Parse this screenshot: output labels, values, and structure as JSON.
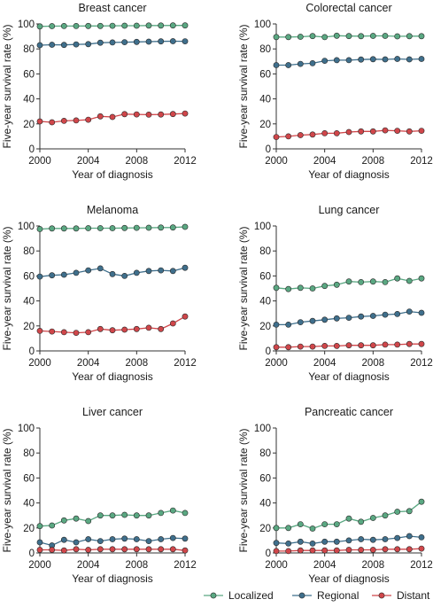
{
  "colors": {
    "Localized": "#5aa882",
    "Regional": "#3f6f8c",
    "Distant": "#d0464a",
    "axis": "#333333"
  },
  "chart_data": [
    {
      "type": "line",
      "title": "Breast cancer",
      "xlabel": "Year of diagnosis",
      "ylabel": "Five-year survival rate (%)",
      "xlim": [
        2000,
        2012
      ],
      "ylim": [
        0,
        100
      ],
      "xticks": [
        2000,
        2004,
        2008,
        2012
      ],
      "yticks": [
        0,
        20,
        40,
        60,
        80,
        100
      ],
      "x": [
        2000,
        2001,
        2002,
        2003,
        2004,
        2005,
        2006,
        2007,
        2008,
        2009,
        2010,
        2011,
        2012
      ],
      "series": [
        {
          "name": "Localized",
          "values": [
            98,
            98.2,
            98.3,
            98.3,
            98.4,
            98.4,
            98.5,
            98.6,
            98.6,
            98.7,
            98.7,
            98.8,
            98.8
          ]
        },
        {
          "name": "Regional",
          "values": [
            83,
            83.3,
            83.2,
            83.6,
            83.8,
            85,
            85.2,
            85.4,
            85.6,
            85.8,
            86,
            86.2,
            86.1
          ]
        },
        {
          "name": "Distant",
          "values": [
            22,
            21.3,
            22.4,
            22.8,
            23.3,
            26,
            25.5,
            27.8,
            27.6,
            27.4,
            27.5,
            27.9,
            28.3
          ]
        }
      ]
    },
    {
      "type": "line",
      "title": "Colorectal cancer",
      "xlabel": "Year of diagnosis",
      "ylabel": "Five-year survival rate (%)",
      "xlim": [
        2000,
        2012
      ],
      "ylim": [
        0,
        100
      ],
      "xticks": [
        2000,
        2004,
        2008,
        2012
      ],
      "yticks": [
        0,
        20,
        40,
        60,
        80,
        100
      ],
      "x": [
        2000,
        2001,
        2002,
        2003,
        2004,
        2005,
        2006,
        2007,
        2008,
        2009,
        2010,
        2011,
        2012
      ],
      "series": [
        {
          "name": "Localized",
          "values": [
            89.5,
            89.5,
            89.7,
            90.3,
            89.4,
            90.6,
            90.3,
            90.2,
            90.4,
            90.4,
            90.1,
            90.2,
            90.2
          ]
        },
        {
          "name": "Regional",
          "values": [
            67,
            67,
            68,
            68.5,
            70.5,
            71,
            71,
            71.5,
            71.8,
            71.6,
            72,
            71.6,
            72
          ]
        },
        {
          "name": "Distant",
          "values": [
            9.5,
            10,
            11,
            11.5,
            12.5,
            12.5,
            13.5,
            14,
            14,
            14.8,
            14.5,
            14,
            14.5
          ]
        }
      ]
    },
    {
      "type": "line",
      "title": "Melanoma",
      "xlabel": "Year of diagnosis",
      "ylabel": "Five-year survival rate (%)",
      "xlim": [
        2000,
        2012
      ],
      "ylim": [
        0,
        100
      ],
      "xticks": [
        2000,
        2004,
        2008,
        2012
      ],
      "yticks": [
        0,
        20,
        40,
        60,
        80,
        100
      ],
      "x": [
        2000,
        2001,
        2002,
        2003,
        2004,
        2005,
        2006,
        2007,
        2008,
        2009,
        2010,
        2011,
        2012
      ],
      "series": [
        {
          "name": "Localized",
          "values": [
            97.5,
            98,
            98,
            98,
            98.2,
            98.2,
            98.2,
            98.4,
            98.5,
            98.6,
            98.7,
            98.8,
            99.3
          ]
        },
        {
          "name": "Regional",
          "values": [
            59.5,
            60.5,
            61,
            62.5,
            64.5,
            66,
            61.5,
            60,
            62.5,
            64,
            64.5,
            64,
            66.5
          ]
        },
        {
          "name": "Distant",
          "values": [
            16,
            15.5,
            15,
            14.5,
            15,
            17.5,
            16.5,
            17,
            17.5,
            18.5,
            17.5,
            22,
            27.5
          ]
        }
      ]
    },
    {
      "type": "line",
      "title": "Lung cancer",
      "xlabel": "Year of diagnosis",
      "ylabel": "Five-year survival rate (%)",
      "xlim": [
        2000,
        2012
      ],
      "ylim": [
        0,
        100
      ],
      "xticks": [
        2000,
        2004,
        2008,
        2012
      ],
      "yticks": [
        0,
        20,
        40,
        60,
        80,
        100
      ],
      "x": [
        2000,
        2001,
        2002,
        2003,
        2004,
        2005,
        2006,
        2007,
        2008,
        2009,
        2010,
        2011,
        2012
      ],
      "series": [
        {
          "name": "Localized",
          "values": [
            50.5,
            49.5,
            50.5,
            50,
            52,
            53,
            55.5,
            55,
            55.5,
            55,
            58,
            56,
            58
          ]
        },
        {
          "name": "Regional",
          "values": [
            21,
            21,
            23,
            24,
            25,
            26,
            26.5,
            27.5,
            28,
            29,
            29.5,
            31.5,
            30.5
          ]
        },
        {
          "name": "Distant",
          "values": [
            3,
            3,
            3.5,
            3.5,
            4,
            4,
            4.5,
            4.5,
            4.5,
            5,
            5,
            5.5,
            5.5
          ]
        }
      ]
    },
    {
      "type": "line",
      "title": "Liver cancer",
      "xlabel": "Year of diagnosis",
      "ylabel": "Five-year survival rate (%)",
      "xlim": [
        2000,
        2012
      ],
      "ylim": [
        0,
        100
      ],
      "xticks": [
        2000,
        2004,
        2008,
        2012
      ],
      "yticks": [
        0,
        20,
        40,
        60,
        80,
        100
      ],
      "x": [
        2000,
        2001,
        2002,
        2003,
        2004,
        2005,
        2006,
        2007,
        2008,
        2009,
        2010,
        2011,
        2012
      ],
      "series": [
        {
          "name": "Localized",
          "values": [
            21.5,
            22,
            26,
            27.5,
            25.5,
            30,
            30,
            30.5,
            30,
            30,
            32,
            34,
            32
          ]
        },
        {
          "name": "Regional",
          "values": [
            8.5,
            6,
            10.5,
            8.5,
            11,
            9.5,
            11,
            11.5,
            11,
            9.5,
            11,
            12,
            11.5
          ]
        },
        {
          "name": "Distant",
          "values": [
            2.5,
            2.5,
            2,
            3,
            2.5,
            3,
            3,
            3,
            3,
            3,
            3,
            3,
            2
          ]
        }
      ]
    },
    {
      "type": "line",
      "title": "Pancreatic cancer",
      "xlabel": "Year of diagnosis",
      "ylabel": "Five-year survival rate (%)",
      "xlim": [
        2000,
        2012
      ],
      "ylim": [
        0,
        100
      ],
      "xticks": [
        2000,
        2004,
        2008,
        2012
      ],
      "yticks": [
        0,
        20,
        40,
        60,
        80,
        100
      ],
      "x": [
        2000,
        2001,
        2002,
        2003,
        2004,
        2005,
        2006,
        2007,
        2008,
        2009,
        2010,
        2011,
        2012
      ],
      "series": [
        {
          "name": "Localized",
          "values": [
            20,
            20,
            23,
            19.5,
            23,
            23,
            27.5,
            25,
            28,
            30,
            33,
            33.5,
            41
          ]
        },
        {
          "name": "Regional",
          "values": [
            8,
            7.5,
            9,
            7.5,
            9,
            9,
            10,
            11,
            10.5,
            11,
            12,
            13.5,
            12.5
          ]
        },
        {
          "name": "Distant",
          "values": [
            1.5,
            1.5,
            2,
            2,
            2,
            2,
            2.5,
            2.5,
            2.5,
            3,
            3,
            3,
            3.5
          ]
        }
      ]
    }
  ],
  "legend": [
    {
      "label": "Localized",
      "color": "#5aa882"
    },
    {
      "label": "Regional",
      "color": "#3f6f8c"
    },
    {
      "label": "Distant",
      "color": "#d0464a"
    }
  ]
}
